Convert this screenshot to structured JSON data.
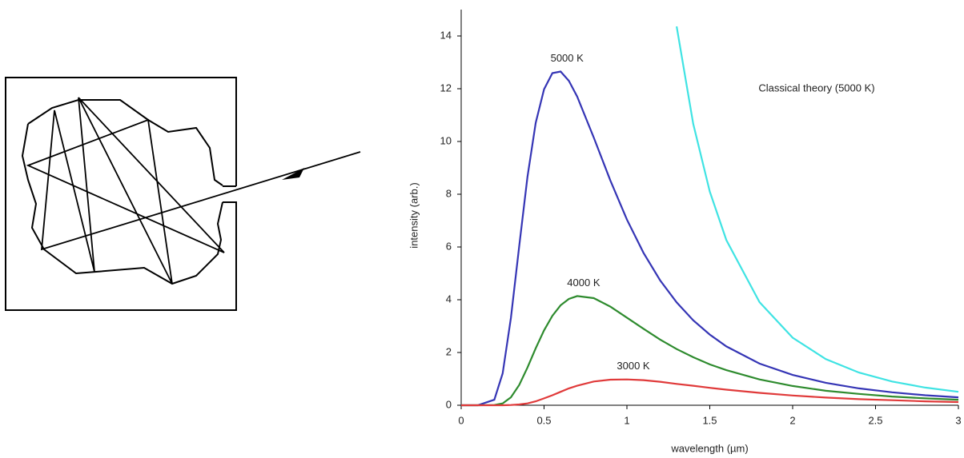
{
  "chart_data": {
    "type": "line",
    "xlabel": "wavelength (µm)",
    "ylabel": "intensity (arb.)",
    "x": [
      0,
      0.1,
      0.2,
      0.25,
      0.3,
      0.35,
      0.4,
      0.45,
      0.5,
      0.55,
      0.6,
      0.65,
      0.7,
      0.8,
      0.9,
      1.0,
      1.1,
      1.2,
      1.3,
      1.4,
      1.5,
      1.6,
      1.8,
      2.0,
      2.2,
      2.4,
      2.6,
      2.8,
      3.0
    ],
    "series": [
      {
        "name": "5000 K",
        "color": "#3535b5",
        "values": [
          0,
          0,
          0.21,
          1.21,
          3.31,
          6.04,
          8.66,
          10.71,
          11.98,
          12.59,
          12.65,
          12.3,
          11.7,
          10.15,
          8.52,
          7.04,
          5.78,
          4.74,
          3.9,
          3.22,
          2.68,
          2.23,
          1.58,
          1.15,
          0.85,
          0.64,
          0.49,
          0.38,
          0.3
        ]
      },
      {
        "name": "4000 K",
        "color": "#2e8b2e",
        "values": [
          0,
          0,
          0.01,
          0.07,
          0.3,
          0.77,
          1.43,
          2.16,
          2.84,
          3.39,
          3.79,
          4.03,
          4.14,
          4.06,
          3.74,
          3.32,
          2.9,
          2.49,
          2.13,
          1.82,
          1.55,
          1.33,
          0.98,
          0.73,
          0.55,
          0.43,
          0.33,
          0.26,
          0.21
        ]
      },
      {
        "name": "3000 K",
        "color": "#e03a3a",
        "values": [
          0,
          0,
          0,
          0,
          0.01,
          0.03,
          0.07,
          0.15,
          0.26,
          0.38,
          0.51,
          0.64,
          0.74,
          0.9,
          0.97,
          0.98,
          0.95,
          0.89,
          0.81,
          0.74,
          0.66,
          0.59,
          0.47,
          0.37,
          0.29,
          0.23,
          0.19,
          0.15,
          0.12
        ]
      },
      {
        "name": "Classical theory (5000 K)",
        "color": "#3fe3e3",
        "values": [
          null,
          null,
          null,
          null,
          null,
          null,
          null,
          null,
          null,
          null,
          null,
          null,
          null,
          null,
          null,
          null,
          null,
          null,
          14.36,
          10.67,
          8.1,
          6.26,
          3.91,
          2.56,
          1.75,
          1.24,
          0.9,
          0.67,
          0.51
        ]
      }
    ],
    "xlim": [
      0,
      3
    ],
    "xticks": [
      0,
      0.5,
      1,
      1.5,
      2,
      2.5,
      3
    ],
    "ylim": [
      0,
      15
    ],
    "yticks": [
      0,
      2,
      4,
      6,
      8,
      10,
      12,
      14
    ]
  }
}
